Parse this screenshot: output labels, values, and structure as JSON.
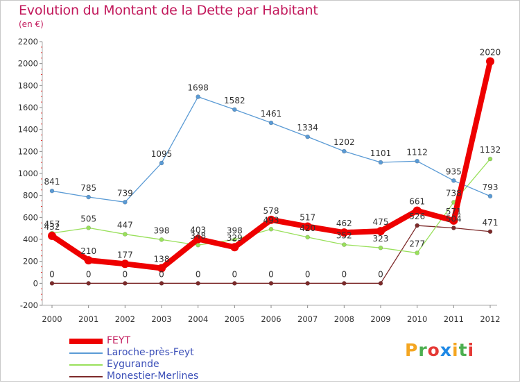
{
  "title": "Evolution du Montant de la Dette par Habitant",
  "subtitle": "(en €)",
  "logo": {
    "letters": [
      "P",
      "r",
      "o",
      "x",
      "i",
      "t",
      "i"
    ],
    "colors": [
      "#f4a621",
      "#4caf50",
      "#e53935",
      "#1e88e5",
      "#f4a621",
      "#4caf50",
      "#e53935"
    ]
  },
  "chart_data": {
    "type": "line",
    "x": [
      "2000",
      "2001",
      "2002",
      "2003",
      "2004",
      "2005",
      "2006",
      "2007",
      "2008",
      "2009",
      "2010",
      "2011",
      "2012"
    ],
    "y_ticks": [
      "-200",
      "0",
      "200",
      "400",
      "600",
      "800",
      "1000",
      "1200",
      "1400",
      "1600",
      "1800",
      "2000",
      "2200"
    ],
    "ylim": [
      -200,
      2200
    ],
    "grid": false,
    "legend_position": "bottom-left",
    "series": [
      {
        "name": "FEYT",
        "color": "#ee0000",
        "values": [
          432,
          210,
          177,
          138,
          403,
          329,
          578,
          517,
          462,
          475,
          661,
          571,
          2020
        ],
        "labels": [
          "432",
          "210",
          "177",
          "138",
          "403",
          "329",
          "578",
          "517",
          "462",
          "475",
          "661",
          "571",
          "2020"
        ]
      },
      {
        "name": "Laroche-près-Feyt",
        "color": "#5b9bd5",
        "values": [
          841,
          785,
          739,
          1095,
          1698,
          1582,
          1461,
          1334,
          1202,
          1101,
          1112,
          935,
          793
        ],
        "labels": [
          "841",
          "785",
          "739",
          "1095",
          "1698",
          "1582",
          "1461",
          "1334",
          "1202",
          "1101",
          "1112",
          "935",
          "793"
        ]
      },
      {
        "name": "Eygurande",
        "color": "#99e05b",
        "values": [
          457,
          505,
          447,
          398,
          348,
          398,
          493,
          420,
          352,
          323,
          277,
          738,
          1132
        ],
        "labels": [
          "457",
          "505",
          "447",
          "398",
          "348",
          "398",
          "493",
          "420",
          "352",
          "323",
          "277",
          "738",
          "1132"
        ]
      },
      {
        "name": "Monestier-Merlines",
        "color": "#7d2a2a",
        "values": [
          0,
          0,
          0,
          0,
          0,
          0,
          0,
          0,
          0,
          0,
          526,
          504,
          471
        ],
        "labels": [
          "0",
          "0",
          "0",
          "0",
          "0",
          "0",
          "0",
          "0",
          "0",
          "0",
          "526",
          "504",
          "471"
        ]
      }
    ]
  }
}
